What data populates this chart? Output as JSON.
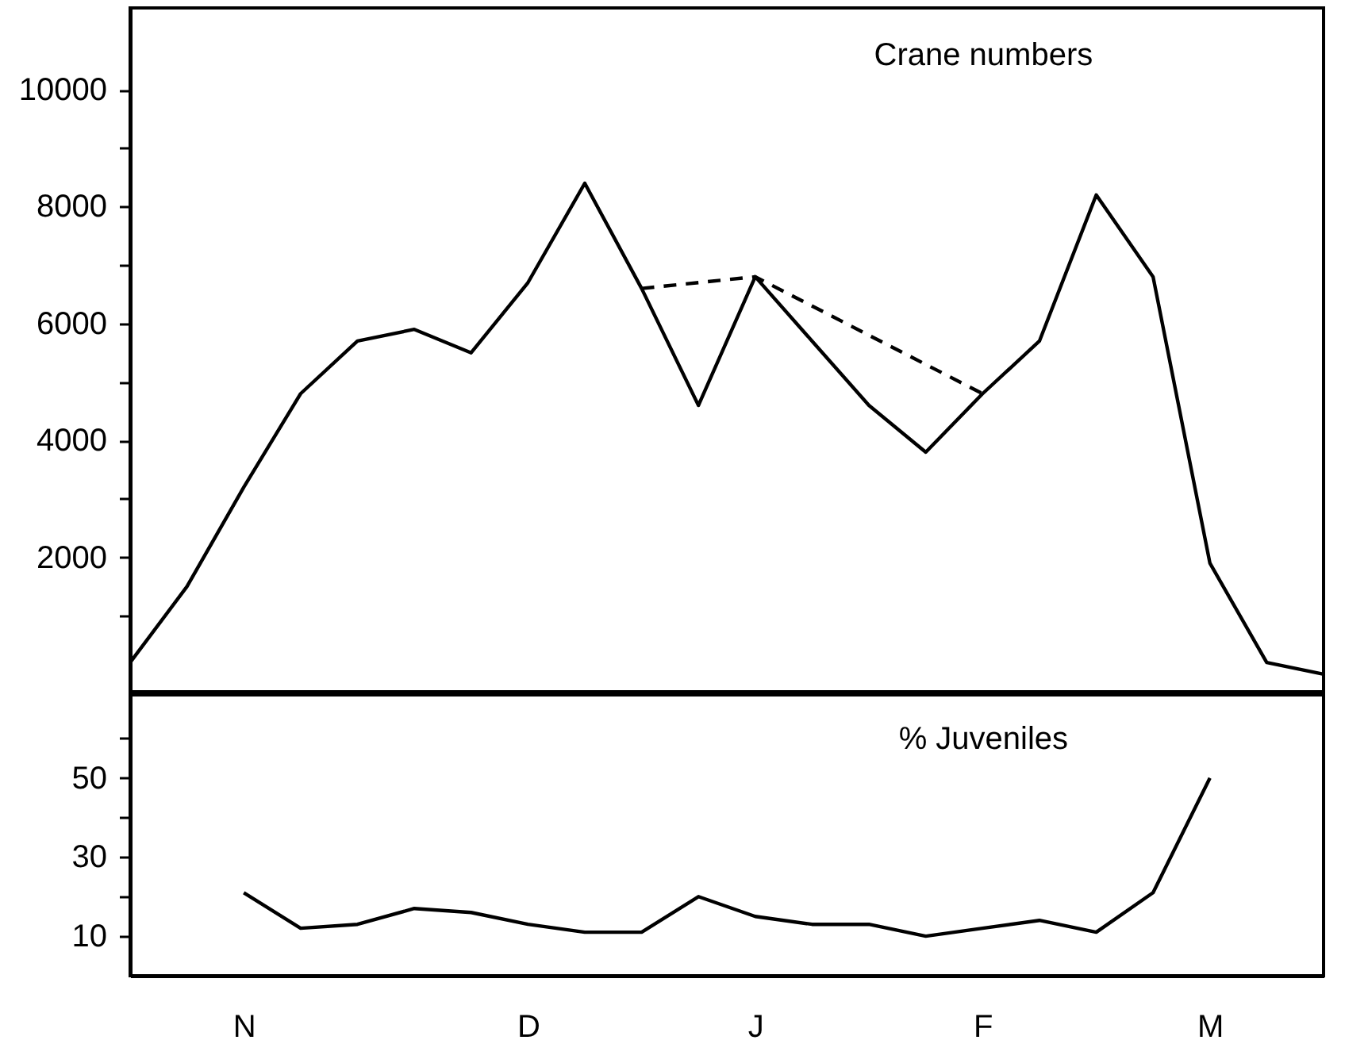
{
  "chart_data": [
    {
      "type": "line",
      "annotations": [
        "Crane numbers"
      ],
      "categories": [
        null,
        null,
        null,
        null,
        null,
        null,
        null,
        null,
        null,
        null,
        null,
        null,
        null,
        null,
        null,
        null,
        null,
        null,
        null,
        null,
        null,
        null
      ],
      "ylim": [
        -300,
        11400
      ],
      "yticks": [
        {
          "value": 1000,
          "label": null
        },
        2000,
        {
          "value": 3000,
          "label": null
        },
        4000,
        {
          "value": 5000,
          "label": null
        },
        6000,
        {
          "value": 7000,
          "label": null
        },
        8000,
        {
          "value": 9000,
          "label": null
        },
        10000
      ],
      "tick_labels": "y",
      "grid": false,
      "legend": false,
      "marker": "none",
      "series": [
        {
          "color": "#000000",
          "line_style": "solid",
          "values": [
            200,
            1500,
            3200,
            4800,
            5700,
            5900,
            5500,
            6700,
            8400,
            6600,
            4600,
            6800,
            5700,
            4600,
            3800,
            4800,
            5700,
            8200,
            6800,
            1900,
            200,
            0
          ]
        },
        {
          "color": "#000000",
          "line_style": "dashed",
          "values": [
            null,
            null,
            null,
            null,
            null,
            null,
            null,
            null,
            null,
            6600,
            6700,
            6800,
            6300,
            5800,
            5300,
            4800,
            null,
            null,
            null,
            null,
            null,
            null
          ]
        }
      ]
    },
    {
      "type": "line",
      "annotations": [
        "% Juveniles"
      ],
      "categories": [
        null,
        null,
        "N",
        null,
        null,
        null,
        null,
        "D",
        null,
        null,
        null,
        "J",
        null,
        null,
        null,
        "F",
        null,
        null,
        null,
        "M",
        null,
        null
      ],
      "ylim": [
        0,
        71
      ],
      "yticks": [
        10,
        {
          "value": 20,
          "label": null
        },
        30,
        {
          "value": 40,
          "label": null
        },
        50,
        {
          "value": 60,
          "label": null
        }
      ],
      "grid": false,
      "legend": false,
      "marker": "none",
      "series": [
        {
          "color": "#000000",
          "line_style": "solid",
          "values": [
            null,
            null,
            21,
            12,
            13,
            17,
            16,
            13,
            11,
            11,
            20,
            15,
            13,
            13,
            10,
            12,
            14,
            11,
            21,
            50,
            null,
            null
          ]
        }
      ]
    }
  ]
}
